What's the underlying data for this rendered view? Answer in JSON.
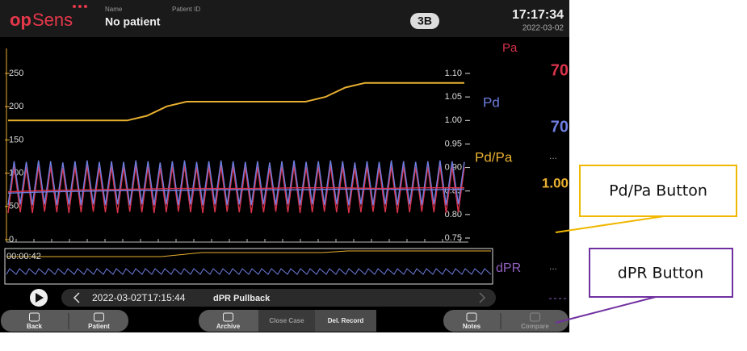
{
  "header": {
    "logo_a": "op",
    "logo_b": "Sens",
    "name_label": "Name",
    "name": "No patient",
    "patient_id_label": "Patient ID",
    "room": "3B",
    "time": "17:17:34",
    "date": "2022-03-02"
  },
  "chart_data": {
    "type": "line",
    "ylim": [
      0,
      250
    ],
    "yticks": [
      0,
      50,
      100,
      150,
      200,
      250
    ],
    "y2lim": [
      0.75,
      1.1
    ],
    "y2ticks": [
      {
        "value": 0.75,
        "label": "0.75"
      },
      {
        "value": 0.8,
        "label": "0.80"
      },
      {
        "value": 0.85,
        "label": "0.85"
      },
      {
        "value": 0.9,
        "label": "0.90"
      },
      {
        "value": 0.95,
        "label": "0.95"
      },
      {
        "value": 1.0,
        "label": "1.00"
      },
      {
        "value": 1.05,
        "label": "1.05"
      },
      {
        "value": 1.1,
        "label": "1.10"
      }
    ],
    "series": [
      {
        "name": "Pa",
        "color": "#d8324a",
        "values": [
          40,
          110,
          41,
          109,
          40,
          111,
          42,
          110,
          41,
          108,
          40,
          110,
          41,
          111,
          42,
          109,
          41,
          110,
          40,
          109,
          42,
          111,
          41,
          110,
          40,
          108,
          41,
          110,
          42,
          111,
          41,
          109,
          40,
          110,
          41,
          111,
          42,
          110,
          41,
          109,
          40,
          110,
          41,
          108,
          42,
          110,
          41,
          111,
          40,
          109,
          41,
          110,
          42,
          111,
          41,
          110,
          40,
          108,
          41,
          110,
          42,
          109,
          41,
          111,
          40,
          110,
          41,
          109,
          42,
          110,
          41,
          111,
          40,
          110,
          41,
          109
        ]
      },
      {
        "name": "Pd",
        "color": "#6e7ee0",
        "values": [
          52,
          118,
          53,
          117,
          52,
          119,
          53,
          118,
          52,
          116,
          53,
          118,
          52,
          119,
          53,
          117,
          52,
          118,
          53,
          117,
          52,
          119,
          53,
          118,
          52,
          116,
          53,
          118,
          52,
          119,
          53,
          117,
          52,
          118,
          53,
          119,
          52,
          118,
          53,
          117,
          52,
          118,
          53,
          116,
          52,
          118,
          53,
          119,
          52,
          117,
          53,
          118,
          52,
          119,
          53,
          118,
          52,
          116,
          53,
          118,
          52,
          117,
          53,
          119,
          52,
          118,
          53,
          117,
          52,
          118,
          53,
          119,
          52,
          118,
          53,
          117
        ]
      },
      {
        "color": "#6e7ee0",
        "values": [
          70,
          72,
          73,
          74,
          74,
          75,
          75,
          75,
          76,
          76,
          75,
          76
        ]
      },
      {
        "color": "#d8324a",
        "values": [
          72,
          74,
          75,
          76,
          77,
          77,
          77,
          78,
          78,
          77,
          78,
          78
        ]
      },
      {
        "name": "Pd/Pa",
        "color": "#e8b030",
        "axis": "y2",
        "values": [
          1.0,
          1.0,
          1.0,
          1.0,
          1.0,
          1.0,
          1.0,
          1.01,
          1.03,
          1.04,
          1.04,
          1.04,
          1.04,
          1.04,
          1.04,
          1.04,
          1.05,
          1.07,
          1.08,
          1.08,
          1.08,
          1.08,
          1.08,
          1.08
        ]
      }
    ]
  },
  "readouts": {
    "pa": "70",
    "pd": "70",
    "pdpa": "1.00",
    "pdpa_more": "...",
    "dpr": "dPR",
    "dpr_more": "..."
  },
  "overview": {
    "time": "00:00:42"
  },
  "record": {
    "timestamp": "2022-03-02T17:15:44",
    "label": "dPR Pullback"
  },
  "toolbar": [
    "Back",
    "Patient",
    "Archive",
    "Close Case",
    "Del. Record",
    "Notes",
    "Compare"
  ],
  "callouts": [
    "Pd/Pa Button",
    "dPR Button"
  ]
}
